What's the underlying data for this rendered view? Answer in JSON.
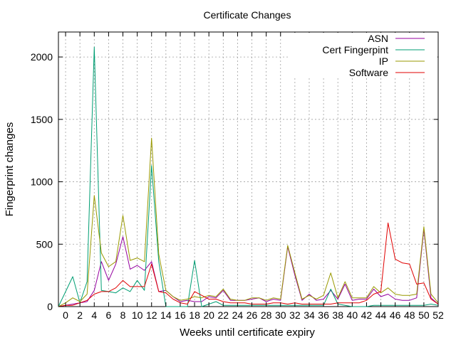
{
  "chart_data": {
    "type": "line",
    "title": "Certificate Changes",
    "xlabel": "Weeks until certificate expiry",
    "ylabel": "Fingerprint changes",
    "xlim": [
      -1,
      52
    ],
    "ylim": [
      0,
      2200
    ],
    "xticks": [
      0,
      2,
      4,
      6,
      8,
      10,
      12,
      14,
      16,
      18,
      20,
      22,
      24,
      26,
      28,
      30,
      32,
      34,
      36,
      38,
      40,
      42,
      44,
      46,
      48,
      50,
      52
    ],
    "yticks": [
      0,
      500,
      1000,
      1500,
      2000
    ],
    "grid": true,
    "legend_position": "top-right",
    "x": [
      -1,
      0,
      1,
      2,
      3,
      4,
      5,
      6,
      7,
      8,
      9,
      10,
      11,
      12,
      13,
      14,
      15,
      16,
      17,
      18,
      19,
      20,
      21,
      22,
      23,
      24,
      25,
      26,
      27,
      28,
      29,
      30,
      31,
      32,
      33,
      34,
      35,
      36,
      37,
      38,
      39,
      40,
      41,
      42,
      43,
      44,
      45,
      46,
      47,
      48,
      49,
      50,
      51,
      52
    ],
    "series": [
      {
        "name": "ASN",
        "color": "#94009f",
        "values": [
          0,
          10,
          20,
          30,
          40,
          130,
          360,
          210,
          340,
          560,
          300,
          330,
          290,
          360,
          120,
          130,
          80,
          40,
          50,
          40,
          40,
          80,
          70,
          130,
          50,
          50,
          50,
          60,
          70,
          40,
          60,
          50,
          480,
          250,
          50,
          100,
          50,
          60,
          130,
          60,
          180,
          50,
          60,
          60,
          140,
          80,
          100,
          60,
          50,
          50,
          70,
          620,
          70,
          20
        ]
      },
      {
        "name": "Cert Fingerpint",
        "color": "#009e73",
        "values": [
          0,
          120,
          240,
          30,
          200,
          2080,
          130,
          120,
          110,
          150,
          120,
          210,
          130,
          1130,
          360,
          0,
          0,
          0,
          0,
          370,
          0,
          20,
          40,
          10,
          10,
          10,
          10,
          10,
          10,
          10,
          10,
          10,
          10,
          10,
          10,
          10,
          10,
          10,
          140,
          20,
          10,
          0,
          0,
          0,
          10,
          10,
          10,
          10,
          10,
          10,
          10,
          10,
          20,
          10
        ]
      },
      {
        "name": "IP",
        "color": "#999900",
        "values": [
          0,
          30,
          70,
          40,
          100,
          890,
          430,
          320,
          360,
          730,
          370,
          390,
          360,
          1350,
          420,
          130,
          80,
          50,
          60,
          80,
          70,
          90,
          80,
          140,
          60,
          50,
          50,
          70,
          70,
          50,
          70,
          60,
          490,
          270,
          60,
          90,
          60,
          90,
          270,
          70,
          200,
          70,
          70,
          70,
          160,
          110,
          150,
          100,
          90,
          90,
          100,
          640,
          100,
          30
        ]
      },
      {
        "name": "Software",
        "color": "#e00000",
        "values": [
          0,
          10,
          10,
          30,
          50,
          100,
          120,
          120,
          150,
          210,
          160,
          160,
          160,
          340,
          120,
          110,
          60,
          30,
          20,
          120,
          90,
          60,
          60,
          40,
          30,
          30,
          30,
          20,
          20,
          20,
          30,
          30,
          20,
          30,
          20,
          20,
          20,
          20,
          20,
          30,
          30,
          30,
          30,
          50,
          100,
          120,
          670,
          380,
          350,
          340,
          180,
          190,
          60,
          20
        ]
      }
    ]
  }
}
